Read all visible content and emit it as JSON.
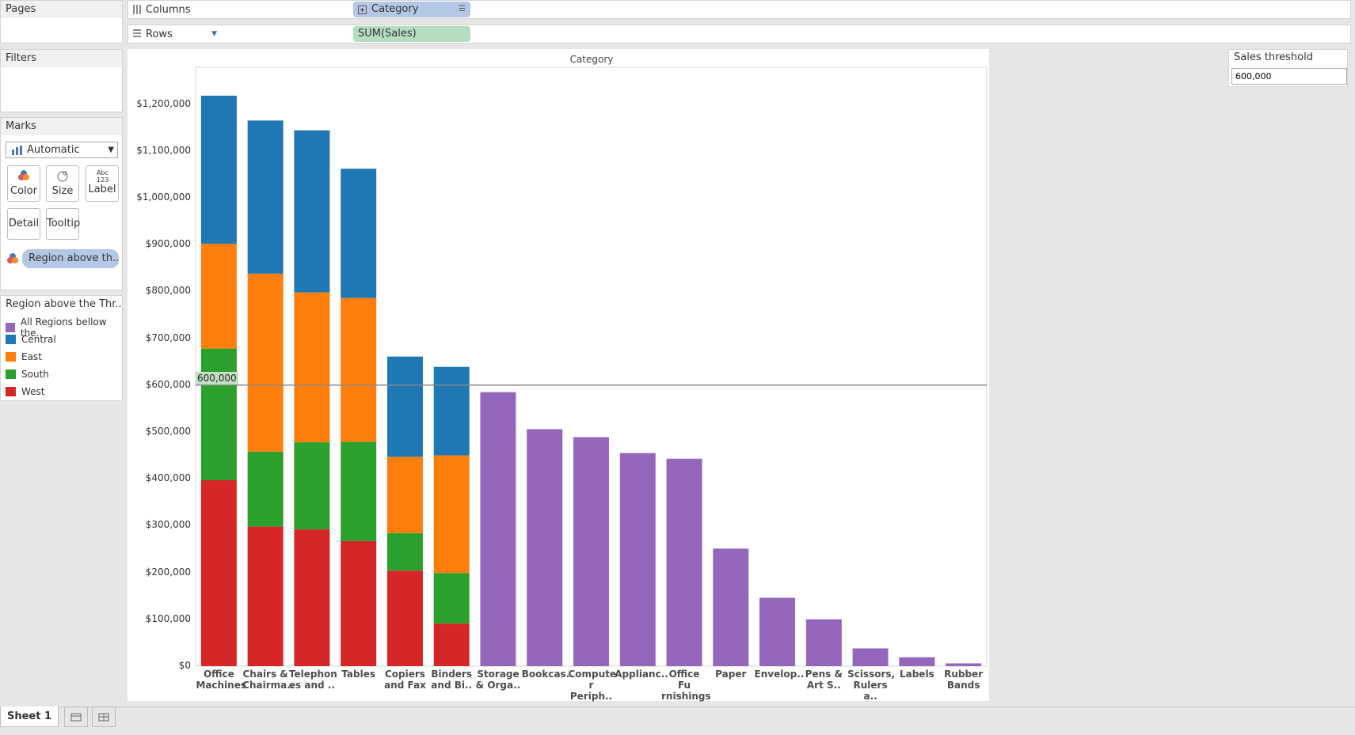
{
  "pages": {
    "title": "Pages"
  },
  "shelves": {
    "columns_label": "Columns",
    "columns_pill": "Category",
    "rows_label": "Rows",
    "rows_pill": "SUM(Sales)"
  },
  "filters": {
    "title": "Filters"
  },
  "marks": {
    "title": "Marks",
    "type_value": "Automatic",
    "buttons": {
      "color": "Color",
      "size": "Size",
      "label": "Label",
      "label_icon": "Abc 123",
      "detail": "Detail",
      "tooltip": "Tooltip"
    },
    "color_pill": "Region above th.."
  },
  "legend": {
    "title": "Region above the Thr...",
    "items": [
      {
        "label": "All Regions bellow the..",
        "color": "#9467bd"
      },
      {
        "label": "Central",
        "color": "#1f77b4"
      },
      {
        "label": "East",
        "color": "#ff7f0e"
      },
      {
        "label": "South",
        "color": "#2ca02c"
      },
      {
        "label": "West",
        "color": "#d62728"
      }
    ]
  },
  "parameter": {
    "title": "Sales threshold",
    "value": "600,000"
  },
  "tabs": {
    "sheet1": "Sheet 1"
  },
  "chart_data": {
    "type": "bar",
    "stacked": true,
    "title": "Category",
    "ylim": [
      0,
      1300000
    ],
    "yticks": [
      "$0",
      "$100,000",
      "$200,000",
      "$300,000",
      "$400,000",
      "$500,000",
      "$600,000",
      "$700,000",
      "$800,000",
      "$900,000",
      "$1,000,000",
      "$1,100,000",
      "$1,200,000"
    ],
    "threshold": {
      "value": 600000,
      "label": "600,000"
    },
    "categories": [
      [
        "Office",
        "Machines"
      ],
      [
        "Chairs &",
        "Chairma.."
      ],
      [
        "Telephon",
        "es and .."
      ],
      [
        "Tables"
      ],
      [
        "Copiers",
        "and Fax"
      ],
      [
        "Binders",
        "and Bi.."
      ],
      [
        "Storage",
        "& Orga.."
      ],
      [
        "Bookcas.."
      ],
      [
        "Compute",
        "r Periph.."
      ],
      [
        "Applianc.."
      ],
      [
        "Office Fu",
        "rnishings"
      ],
      [
        "Paper"
      ],
      [
        "Envelop.."
      ],
      [
        "Pens &",
        "Art S.."
      ],
      [
        "Scissors,",
        "Rulers a.."
      ],
      [
        "Labels"
      ],
      [
        "Rubber",
        "Bands"
      ]
    ],
    "series": [
      {
        "name": "West",
        "color": "#d62728",
        "values": [
          397000,
          298000,
          292000,
          267000,
          204000,
          91000,
          0,
          0,
          0,
          0,
          0,
          0,
          0,
          0,
          0,
          0,
          0
        ]
      },
      {
        "name": "South",
        "color": "#2ca02c",
        "values": [
          281000,
          160000,
          186000,
          212000,
          80000,
          108000,
          0,
          0,
          0,
          0,
          0,
          0,
          0,
          0,
          0,
          0,
          0
        ]
      },
      {
        "name": "East",
        "color": "#ff7f0e",
        "values": [
          224000,
          380000,
          320000,
          307000,
          163000,
          251000,
          0,
          0,
          0,
          0,
          0,
          0,
          0,
          0,
          0,
          0,
          0
        ]
      },
      {
        "name": "Central",
        "color": "#1f77b4",
        "values": [
          316000,
          327000,
          346000,
          276000,
          214000,
          189000,
          0,
          0,
          0,
          0,
          0,
          0,
          0,
          0,
          0,
          0,
          0
        ]
      },
      {
        "name": "All Regions bellow the..",
        "color": "#9467bd",
        "values": [
          0,
          0,
          0,
          0,
          0,
          0,
          585000,
          506000,
          489000,
          455000,
          443000,
          251000,
          146000,
          100000,
          38000,
          19000,
          6000
        ]
      }
    ]
  }
}
